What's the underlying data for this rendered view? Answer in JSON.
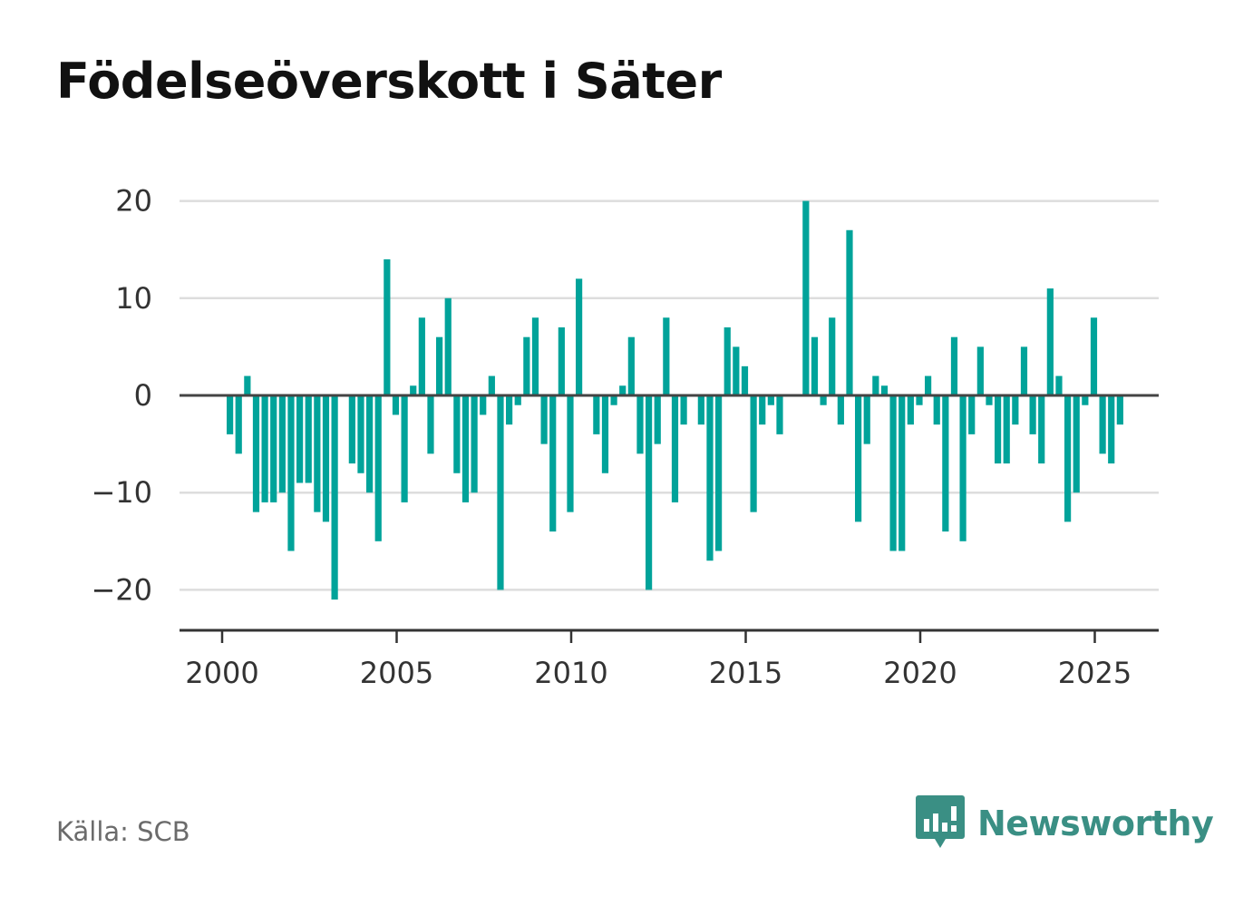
{
  "title": "Födelseöverskott i Säter",
  "source": "Källa: SCB",
  "brand": {
    "name": "Newsworthy",
    "icon": "bar-chart-speech-bubble-icon",
    "color": "#3a8f84"
  },
  "colors": {
    "bar": "#00a39a",
    "grid": "#dddddd",
    "zero_line": "#444444",
    "axis": "#333333",
    "tick_text": "#333333"
  },
  "chart_data": {
    "type": "bar",
    "title": "Födelseöverskott i Säter",
    "xlabel": "",
    "ylabel": "",
    "ylim": [
      -24,
      20
    ],
    "yticks": [
      20,
      10,
      0,
      -10,
      -20
    ],
    "ytick_labels": [
      "20",
      "10",
      "0",
      "−10",
      "−20"
    ],
    "xlim": [
      1999.75,
      2025.9
    ],
    "xticks": [
      2000,
      2005,
      2010,
      2015,
      2020,
      2025
    ],
    "xtick_labels": [
      "2000",
      "2005",
      "2010",
      "2015",
      "2020",
      "2025"
    ],
    "grid": true,
    "period": "quarterly",
    "x_start": 2000.0,
    "x_step": 0.25,
    "values": [
      -4,
      -6,
      2,
      -12,
      -11,
      -11,
      -10,
      -16,
      -9,
      -9,
      -12,
      -13,
      -21,
      0,
      -7,
      -8,
      -10,
      -15,
      14,
      -2,
      -11,
      1,
      8,
      -6,
      6,
      10,
      -8,
      -11,
      -10,
      -2,
      2,
      -20,
      -3,
      -1,
      6,
      8,
      -5,
      -14,
      7,
      -12,
      12,
      0,
      -4,
      -8,
      -1,
      1,
      6,
      -6,
      -20,
      -5,
      8,
      -11,
      -3,
      0,
      -3,
      -17,
      -16,
      7,
      5,
      3,
      -12,
      -3,
      -1,
      -4,
      0,
      0,
      20,
      6,
      -1,
      8,
      -3,
      17,
      -13,
      -5,
      2,
      1,
      -16,
      -16,
      -3,
      -1,
      2,
      -3,
      -14,
      6,
      -15,
      -4,
      5,
      -1,
      -7,
      -7,
      -3,
      5,
      -4,
      -7,
      11,
      2,
      -13,
      -10,
      -1,
      8,
      -6,
      -7,
      -3
    ]
  }
}
